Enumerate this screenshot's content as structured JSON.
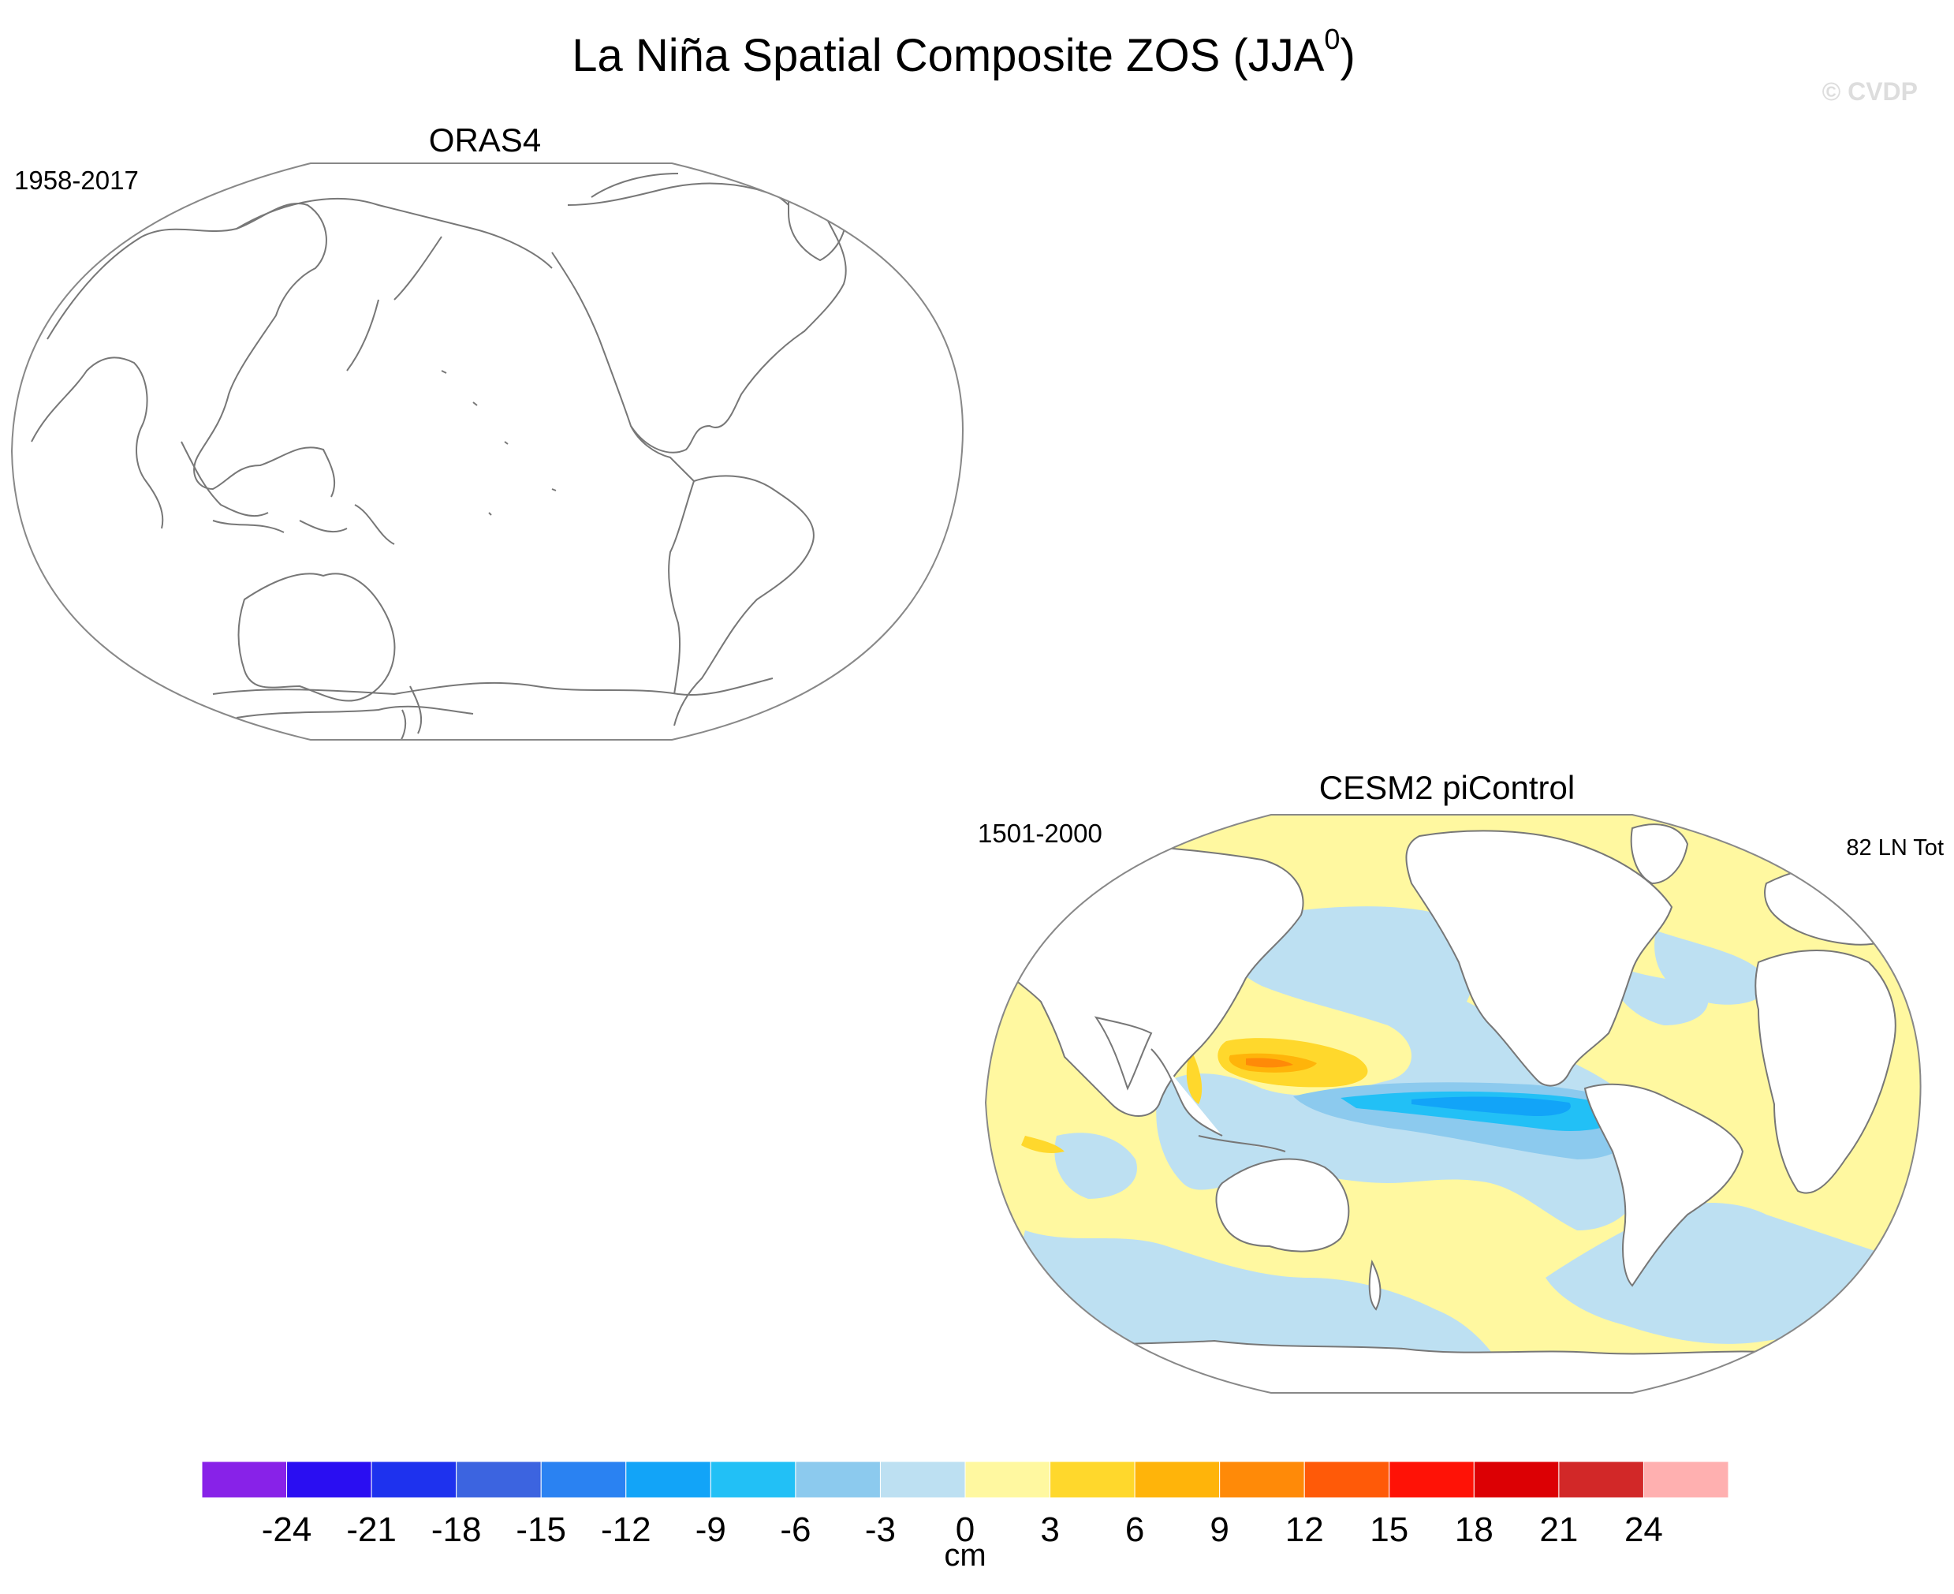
{
  "title": {
    "main": "La Niña Spatial Composite ZOS (JJA",
    "sup": "0",
    "close": ")"
  },
  "watermark": "© CVDP",
  "panels": [
    {
      "name": "ORAS4",
      "years": "1958-2017",
      "count": ""
    },
    {
      "name": "CESM2 piControl",
      "years": "1501-2000",
      "count": "82 LN Tot"
    }
  ],
  "colorbar": {
    "unit": "cm",
    "labels": [
      "-24",
      "-21",
      "-18",
      "-15",
      "-12",
      "-9",
      "-6",
      "-3",
      "0",
      "3",
      "6",
      "9",
      "12",
      "15",
      "18",
      "21",
      "24"
    ],
    "colors": [
      "#8822e8",
      "#2a0ef2",
      "#1e32ee",
      "#3c64e0",
      "#2a82f2",
      "#12a4f8",
      "#22c0f6",
      "#8ccaee",
      "#bde0f2",
      "#fff8a0",
      "#ffd82c",
      "#ffb40a",
      "#ff8a08",
      "#ff5a08",
      "#ff1206",
      "#dc0004",
      "#d22828",
      "#ffb0b0"
    ]
  },
  "colors": {
    "coast": "#777777",
    "frame": "#888888",
    "neg_light": "#bde0f2",
    "neg_mid": "#8ccaee",
    "neg_strong": "#22c0f6",
    "neg_core": "#12a4f8",
    "pos_light": "#fff8a0",
    "pos_mid": "#ffd82c",
    "pos_strong": "#ffb40a",
    "pos_core": "#ff8a08"
  }
}
